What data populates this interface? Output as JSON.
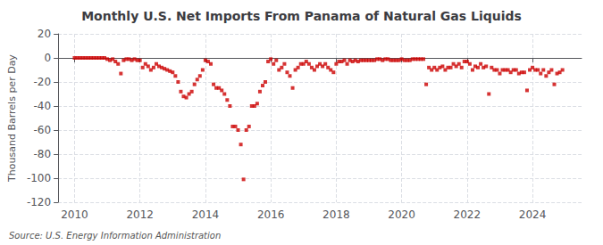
{
  "chart_data": {
    "type": "scatter",
    "title": "Monthly U.S. Net Imports From Panama of Natural Gas Liquids",
    "ylabel": "Thousand Barrels per Day",
    "annotations": [
      "Source: U.S. Energy Information Administration"
    ],
    "color": "#cc0000",
    "marker": "square",
    "grid": true,
    "xlim": [
      2009.5,
      2025.5
    ],
    "ylim": [
      -120,
      20
    ],
    "xticks": [
      2010,
      2012,
      2014,
      2016,
      2018,
      2020,
      2022,
      2024
    ],
    "yticks": [
      20,
      0,
      -20,
      -40,
      -60,
      -80,
      -100,
      -120
    ],
    "x": [
      2010.0,
      2010.083,
      2010.167,
      2010.25,
      2010.333,
      2010.417,
      2010.5,
      2010.583,
      2010.667,
      2010.75,
      2010.833,
      2010.917,
      2011.0,
      2011.083,
      2011.167,
      2011.25,
      2011.333,
      2011.417,
      2011.5,
      2011.583,
      2011.667,
      2011.75,
      2011.833,
      2011.917,
      2012.0,
      2012.083,
      2012.167,
      2012.25,
      2012.333,
      2012.417,
      2012.5,
      2012.583,
      2012.667,
      2012.75,
      2012.833,
      2012.917,
      2013.0,
      2013.083,
      2013.167,
      2013.25,
      2013.333,
      2013.417,
      2013.5,
      2013.583,
      2013.667,
      2013.75,
      2013.833,
      2013.917,
      2014.0,
      2014.083,
      2014.167,
      2014.25,
      2014.333,
      2014.417,
      2014.5,
      2014.583,
      2014.667,
      2014.75,
      2014.833,
      2014.917,
      2015.0,
      2015.083,
      2015.167,
      2015.25,
      2015.333,
      2015.417,
      2015.5,
      2015.583,
      2015.667,
      2015.75,
      2015.833,
      2015.917,
      2016.0,
      2016.083,
      2016.167,
      2016.25,
      2016.333,
      2016.417,
      2016.5,
      2016.583,
      2016.667,
      2016.75,
      2016.833,
      2016.917,
      2017.0,
      2017.083,
      2017.167,
      2017.25,
      2017.333,
      2017.417,
      2017.5,
      2017.583,
      2017.667,
      2017.75,
      2017.833,
      2017.917,
      2018.0,
      2018.083,
      2018.167,
      2018.25,
      2018.333,
      2018.417,
      2018.5,
      2018.583,
      2018.667,
      2018.75,
      2018.833,
      2018.917,
      2019.0,
      2019.083,
      2019.167,
      2019.25,
      2019.333,
      2019.417,
      2019.5,
      2019.583,
      2019.667,
      2019.75,
      2019.833,
      2019.917,
      2020.0,
      2020.083,
      2020.167,
      2020.25,
      2020.333,
      2020.417,
      2020.5,
      2020.583,
      2020.667,
      2020.75,
      2020.833,
      2020.917,
      2021.0,
      2021.083,
      2021.167,
      2021.25,
      2021.333,
      2021.417,
      2021.5,
      2021.583,
      2021.667,
      2021.75,
      2021.833,
      2021.917,
      2022.0,
      2022.083,
      2022.167,
      2022.25,
      2022.333,
      2022.417,
      2022.5,
      2022.583,
      2022.667,
      2022.75,
      2022.833,
      2022.917,
      2023.0,
      2023.083,
      2023.167,
      2023.25,
      2023.333,
      2023.417,
      2023.5,
      2023.583,
      2023.667,
      2023.75,
      2023.833,
      2023.917,
      2024.0,
      2024.083,
      2024.167,
      2024.25,
      2024.333,
      2024.417,
      2024.5,
      2024.583,
      2024.667,
      2024.75,
      2024.833,
      2024.917
    ],
    "values": [
      0,
      0,
      0,
      0,
      0,
      0,
      0,
      0,
      0,
      0,
      0,
      0,
      -1,
      -2,
      -1,
      -3,
      -5,
      -13,
      -2,
      -1,
      -1,
      -2,
      -1,
      -2,
      -2,
      -8,
      -5,
      -7,
      -10,
      -8,
      -5,
      -7,
      -8,
      -9,
      -10,
      -11,
      -12,
      -15,
      -20,
      -28,
      -32,
      -33,
      -30,
      -28,
      -22,
      -18,
      -15,
      -10,
      -2,
      -3,
      -5,
      -22,
      -25,
      -25,
      -27,
      -30,
      -35,
      -40,
      -57,
      -57,
      -60,
      -72,
      -101,
      -60,
      -57,
      -40,
      -40,
      -38,
      -28,
      -23,
      -20,
      -3,
      -1,
      -5,
      -2,
      -10,
      -8,
      -5,
      -12,
      -15,
      -25,
      -10,
      -8,
      -5,
      -5,
      -3,
      -5,
      -8,
      -10,
      -7,
      -5,
      -7,
      -5,
      -8,
      -10,
      -12,
      -5,
      -3,
      -3,
      -2,
      -5,
      -2,
      -3,
      -2,
      -3,
      -2,
      -2,
      -2,
      -2,
      -2,
      -2,
      -1,
      -1,
      -2,
      -1,
      -1,
      -2,
      -2,
      -2,
      -2,
      -1,
      -2,
      -2,
      -2,
      -1,
      -1,
      -1,
      -1,
      -1,
      -22,
      -8,
      -10,
      -8,
      -10,
      -8,
      -7,
      -10,
      -8,
      -8,
      -5,
      -7,
      -5,
      -8,
      -3,
      -3,
      -5,
      -10,
      -7,
      -8,
      -5,
      -8,
      -7,
      -30,
      -8,
      -10,
      -10,
      -13,
      -10,
      -10,
      -10,
      -12,
      -10,
      -10,
      -13,
      -12,
      -12,
      -27,
      -10,
      -8,
      -10,
      -10,
      -13,
      -10,
      -15,
      -12,
      -10,
      -22,
      -13,
      -12,
      -10
    ]
  }
}
